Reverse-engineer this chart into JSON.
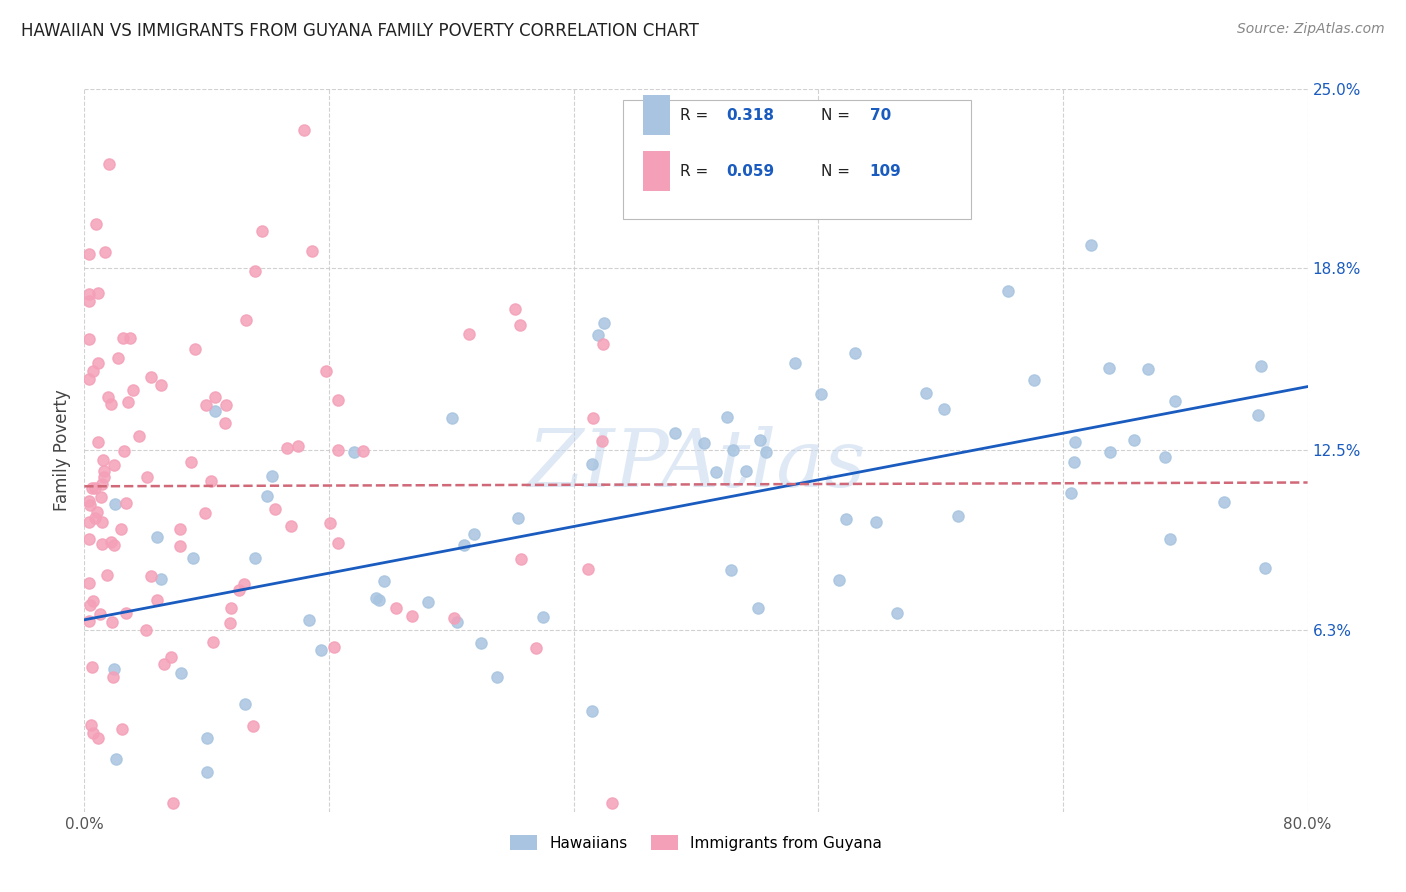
{
  "title": "HAWAIIAN VS IMMIGRANTS FROM GUYANA FAMILY POVERTY CORRELATION CHART",
  "source": "Source: ZipAtlas.com",
  "ylabel": "Family Poverty",
  "x_min": 0.0,
  "x_max": 0.8,
  "y_min": 0.0,
  "y_max": 0.25,
  "y_tick_labels_right": [
    "25.0%",
    "18.8%",
    "12.5%",
    "6.3%"
  ],
  "y_tick_vals_right": [
    0.25,
    0.188,
    0.125,
    0.063
  ],
  "hawaiians_color": "#a8c4e0",
  "guyana_color": "#f4a0b8",
  "hawaiians_line_color": "#1a5bbf",
  "guyana_line_color": "#d06878",
  "hawaiians_R": 0.318,
  "hawaiians_N": 70,
  "guyana_R": 0.059,
  "guyana_N": 109,
  "watermark": "ZIPAtlas",
  "grid_color": "#cccccc",
  "background_color": "#ffffff"
}
